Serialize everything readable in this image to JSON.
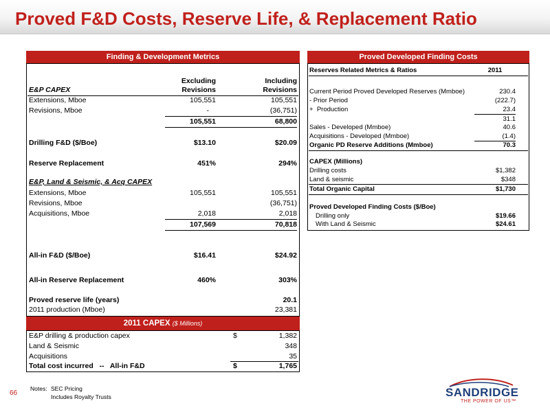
{
  "title": "Proved F&D Costs, Reserve Life, & Replacement Ratio",
  "left": {
    "header": "Finding & Development Metrics",
    "col_hdr_excl_1": "Excluding",
    "col_hdr_excl_2": "Revisions",
    "col_hdr_incl_1": "Including",
    "col_hdr_incl_2": "Revisions",
    "ep_capex": "E&P CAPEX",
    "rows1": [
      {
        "label": "Extensions, Mboe",
        "excl": "105,551",
        "incl": "105,551"
      },
      {
        "label": "Revisions, Mboe",
        "excl": "-",
        "incl": "(36,751)"
      }
    ],
    "total1_excl": "105,551",
    "total1_incl": "68,800",
    "drill_fd_label": "Drilling F&D ($/Boe)",
    "drill_fd_excl": "$13.10",
    "drill_fd_incl": "$20.09",
    "res_repl_label": "Reserve Replacement",
    "res_repl_excl": "451%",
    "res_repl_incl": "294%",
    "ep_land_label": "E&P, Land & Seismic, & Acq CAPEX",
    "rows2": [
      {
        "label": "Extensions, Mboe",
        "excl": "105,551",
        "incl": "105,551"
      },
      {
        "label": "Revisions, Mboe",
        "excl": "",
        "incl": "(36,751)"
      },
      {
        "label": "Acquisitions, Mboe",
        "excl": "2,018",
        "incl": "2,018"
      }
    ],
    "total2_excl": "107,569",
    "total2_incl": "70,818",
    "allin_fd_label": "All-in F&D ($/Boe)",
    "allin_fd_excl": "$16.41",
    "allin_fd_incl": "$24.92",
    "allin_rr_label": "All-in Reserve Replacement",
    "allin_rr_excl": "460%",
    "allin_rr_incl": "303%",
    "prl_label": "Proved reserve life (years)",
    "prl_val": "20.1",
    "prod_label": "2011 production (Mboe)",
    "prod_val": "23,381"
  },
  "capex": {
    "header": "2011 CAPEX",
    "header_sub": "($ Millions)",
    "rows": [
      {
        "label": "E&P drilling & production capex",
        "dollar": "$",
        "val": "1,382"
      },
      {
        "label": "Land & Seismic",
        "dollar": "",
        "val": "348"
      },
      {
        "label": "Acquisitions",
        "dollar": "",
        "val": "35"
      }
    ],
    "total_label": "Total cost incurred   --   All-in F&D",
    "total_dollar": "$",
    "total_val": "1,765"
  },
  "right": {
    "header": "Proved Developed Finding Costs",
    "col_label": "Reserves Related Metrics & Ratios",
    "col_year": "2011",
    "rows": [
      {
        "label": "Current Period Proved Developed Reserves (Mmboe)",
        "val": "230.4"
      },
      {
        "label": "- Prior Period",
        "val": "(222.7)"
      },
      {
        "label": "+  Production",
        "val": "23.4"
      },
      {
        "label": "",
        "val": "31.1"
      },
      {
        "label": "Sales - Developed (Mmboe)",
        "val": "40.6"
      },
      {
        "label": "Acquisitions - Developed (Mmboe)",
        "val": "(1.4)"
      },
      {
        "label": "Organic PD Reserve Additions (Mmboe)",
        "val": "70.3"
      }
    ],
    "capex_label": "CAPEX (Millions)",
    "drilling_label": "Drilling costs",
    "drilling_val": "$1,382",
    "land_label": "Land & seismic",
    "land_val": "$348",
    "toc_label": "Total Organic Capital",
    "toc_val": "$1,730",
    "pdfc_label": "Proved Developed Finding Costs ($/Boe)",
    "drill_only_label": "Drilling only",
    "drill_only_val": "$19.66",
    "wls_label": "With Land & Seismic",
    "wls_val": "$24.61"
  },
  "notes": {
    "label": "Notes:",
    "line1": "SEC Pricing",
    "line2": "Includes Royalty Trusts"
  },
  "page_number": "66",
  "logo": {
    "name": "SANDRIDGE",
    "tagline": "THE POWER OF US™"
  },
  "colors": {
    "accent": "#c0201c",
    "logo_blue": "#1f3f7a"
  }
}
